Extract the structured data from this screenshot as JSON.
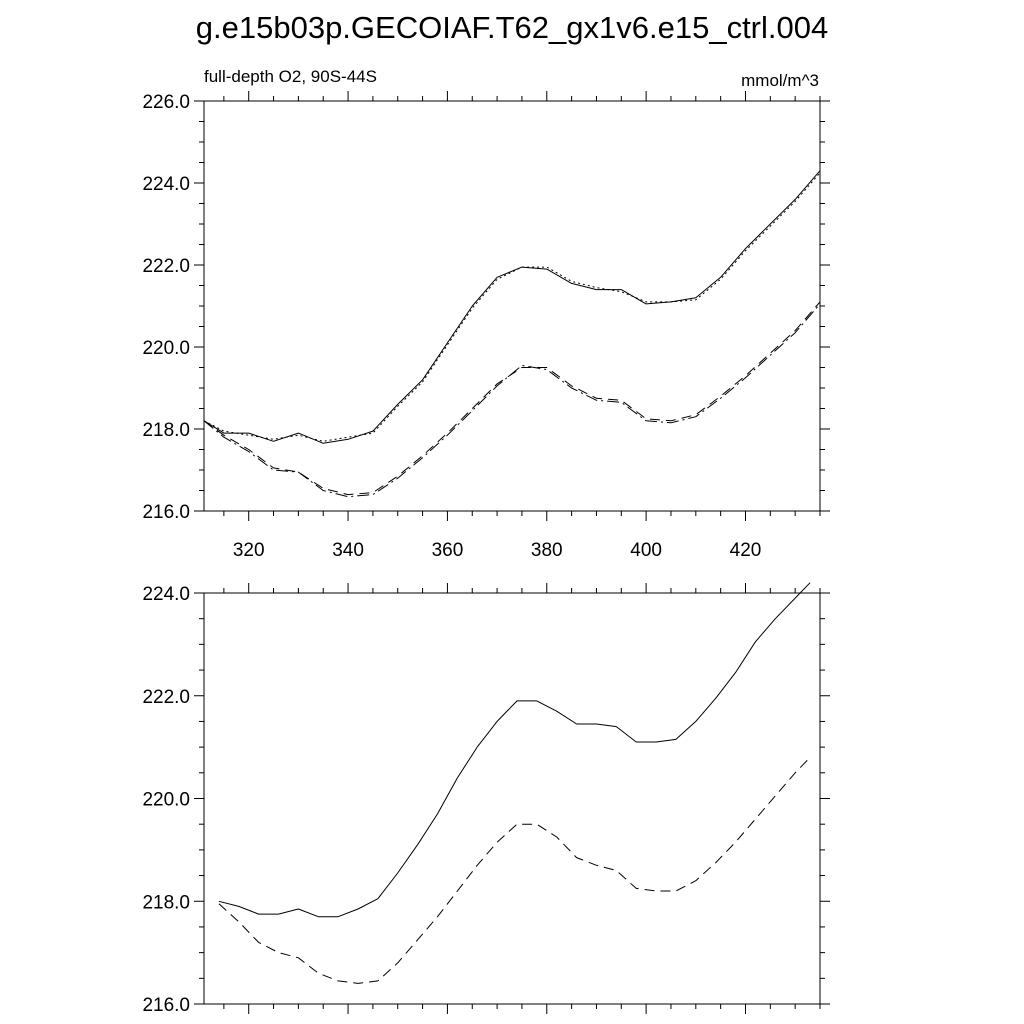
{
  "figure": {
    "title": "g.e15b03p.GECOIAF.T62_gx1v6.e15_ctrl.004"
  },
  "chart_data": [
    {
      "type": "line",
      "subtitle_left": "full-depth O2, 90S-44S",
      "subtitle_right": "mmol/m^3",
      "xlim": [
        311,
        435
      ],
      "ylim": [
        216,
        226
      ],
      "x_ticks": [
        320,
        340,
        360,
        380,
        400,
        420
      ],
      "x_tick_labels": [
        "320",
        "340",
        "360",
        "380",
        "400",
        "420"
      ],
      "y_ticks": [
        216,
        218,
        220,
        222,
        224,
        226
      ],
      "y_tick_labels": [
        "216.0",
        "218.0",
        "220.0",
        "222.0",
        "224.0",
        "226.0"
      ],
      "grid": false,
      "series": [
        {
          "style": "solid",
          "x": [
            311,
            315,
            320,
            325,
            330,
            335,
            340,
            345,
            350,
            355,
            360,
            365,
            370,
            375,
            380,
            385,
            390,
            395,
            400,
            405,
            410,
            415,
            420,
            425,
            430,
            435
          ],
          "y": [
            218.2,
            217.9,
            217.9,
            217.7,
            217.9,
            217.65,
            217.75,
            217.95,
            218.6,
            219.2,
            220.1,
            221.0,
            221.7,
            221.95,
            221.9,
            221.55,
            221.4,
            221.4,
            221.05,
            221.1,
            221.2,
            221.7,
            222.4,
            223.0,
            223.6,
            224.3
          ]
        },
        {
          "style": "dotted",
          "x": [
            311,
            315,
            320,
            325,
            330,
            335,
            340,
            345,
            350,
            355,
            360,
            365,
            370,
            375,
            380,
            385,
            390,
            395,
            400,
            405,
            410,
            415,
            420,
            425,
            430,
            435
          ],
          "y": [
            218.2,
            217.95,
            217.85,
            217.75,
            217.85,
            217.7,
            217.8,
            217.9,
            218.55,
            219.15,
            220.05,
            220.95,
            221.65,
            221.95,
            221.95,
            221.6,
            221.45,
            221.35,
            221.1,
            221.1,
            221.15,
            221.65,
            222.35,
            222.95,
            223.55,
            224.25
          ]
        },
        {
          "style": "dashed",
          "x": [
            311,
            315,
            320,
            325,
            330,
            335,
            340,
            345,
            350,
            355,
            360,
            365,
            370,
            375,
            380,
            385,
            390,
            395,
            400,
            405,
            410,
            415,
            420,
            425,
            430,
            435
          ],
          "y": [
            218.2,
            217.85,
            217.5,
            217.05,
            216.95,
            216.55,
            216.4,
            216.45,
            216.85,
            217.35,
            217.9,
            218.5,
            219.1,
            219.5,
            219.5,
            219.05,
            218.75,
            218.7,
            218.25,
            218.2,
            218.35,
            218.8,
            219.3,
            219.85,
            220.4,
            221.1
          ]
        },
        {
          "style": "dashdot",
          "x": [
            311,
            315,
            320,
            325,
            330,
            335,
            340,
            345,
            350,
            355,
            360,
            365,
            370,
            375,
            380,
            385,
            390,
            395,
            400,
            405,
            410,
            415,
            420,
            425,
            430,
            435
          ],
          "y": [
            218.2,
            217.8,
            217.45,
            217.0,
            216.95,
            216.5,
            216.35,
            216.4,
            216.8,
            217.3,
            217.85,
            218.45,
            219.05,
            219.55,
            219.45,
            219.0,
            218.7,
            218.65,
            218.2,
            218.15,
            218.3,
            218.75,
            219.25,
            219.8,
            220.35,
            221.05
          ]
        }
      ]
    },
    {
      "type": "line",
      "xlim": [
        311,
        435
      ],
      "ylim": [
        216,
        224
      ],
      "x_ticks": [
        320,
        340,
        360,
        380,
        400,
        420
      ],
      "y_ticks": [
        216,
        218,
        220,
        222,
        224
      ],
      "y_tick_labels": [
        "216.0",
        "218.0",
        "220.0",
        "222.0",
        "224.0"
      ],
      "grid": false,
      "series": [
        {
          "style": "solid",
          "x": [
            314,
            318,
            322,
            326,
            330,
            334,
            338,
            342,
            346,
            350,
            354,
            358,
            362,
            366,
            370,
            374,
            378,
            382,
            386,
            390,
            394,
            398,
            402,
            406,
            410,
            414,
            418,
            422,
            426,
            430,
            433
          ],
          "y": [
            218.0,
            217.9,
            217.75,
            217.75,
            217.85,
            217.7,
            217.7,
            217.85,
            218.05,
            218.55,
            219.1,
            219.7,
            220.4,
            221.0,
            221.5,
            221.9,
            221.9,
            221.7,
            221.45,
            221.45,
            221.4,
            221.1,
            221.1,
            221.15,
            221.5,
            221.95,
            222.45,
            223.05,
            223.5,
            223.9,
            224.2
          ]
        },
        {
          "style": "dashed",
          "x": [
            314,
            318,
            322,
            326,
            330,
            334,
            338,
            342,
            346,
            350,
            354,
            358,
            362,
            366,
            370,
            374,
            378,
            382,
            386,
            390,
            394,
            398,
            402,
            406,
            410,
            414,
            418,
            422,
            426,
            430,
            433
          ],
          "y": [
            217.95,
            217.6,
            217.2,
            217.0,
            216.9,
            216.6,
            216.45,
            216.4,
            216.45,
            216.8,
            217.25,
            217.7,
            218.2,
            218.7,
            219.15,
            219.5,
            219.5,
            219.25,
            218.85,
            218.7,
            218.6,
            218.25,
            218.2,
            218.2,
            218.4,
            218.75,
            219.15,
            219.6,
            220.05,
            220.5,
            220.8
          ]
        }
      ]
    }
  ]
}
